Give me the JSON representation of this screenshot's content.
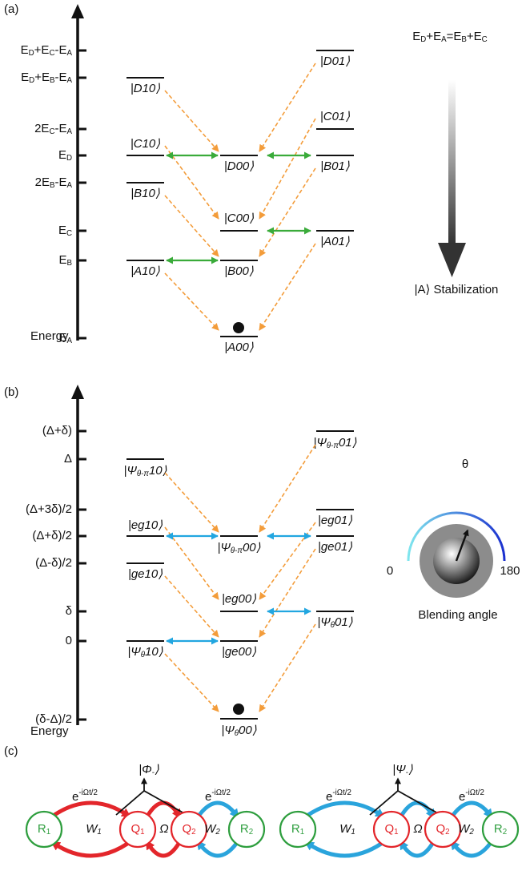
{
  "panel_a": {
    "label": "(a)",
    "axis_title": "Energy",
    "ticks": [
      [
        "E",
        {
          "sub": "D"
        },
        "+E",
        {
          "sub": "C"
        },
        "-E",
        {
          "sub": "A"
        }
      ],
      [
        "E",
        {
          "sub": "D"
        },
        "+E",
        {
          "sub": "B"
        },
        "-E",
        {
          "sub": "A"
        }
      ],
      [
        "2E",
        {
          "sub": "C"
        },
        "-E",
        {
          "sub": "A"
        }
      ],
      [
        "E",
        {
          "sub": "D"
        }
      ],
      [
        "2E",
        {
          "sub": "B"
        },
        "-E",
        {
          "sub": "A"
        }
      ],
      [
        "E",
        {
          "sub": "C"
        }
      ],
      [
        "E",
        {
          "sub": "B"
        }
      ],
      [
        "E",
        {
          "sub": "A"
        }
      ]
    ],
    "states": [
      "|D10⟩",
      "|C10⟩",
      "|B10⟩",
      "|A10⟩",
      "|D00⟩",
      "|C00⟩",
      "|B00⟩",
      "|A00⟩",
      "|D01⟩",
      "|C01⟩",
      "|B01⟩",
      "|A01⟩"
    ],
    "relation": [
      "E",
      {
        "sub": "D"
      },
      "+E",
      {
        "sub": "A"
      },
      "=E",
      {
        "sub": "B"
      },
      "+E",
      {
        "sub": "C"
      }
    ],
    "caption": "|A⟩ Stabilization"
  },
  "panel_b": {
    "label": "(b)",
    "axis_title": "Energy",
    "ticks": [
      "(Δ+δ)",
      "Δ",
      "(Δ+3δ)/2",
      "(Δ+δ)/2",
      "(Δ-δ)/2",
      "δ",
      "0",
      "(δ-Δ)/2"
    ],
    "states": [
      [
        "|Ψ",
        {
          "sub": "θ-π"
        },
        "10⟩"
      ],
      "|eg10⟩",
      "|ge10⟩",
      [
        "|Ψ",
        {
          "sub": "θ"
        },
        "10⟩"
      ],
      [
        "|Ψ",
        {
          "sub": "θ-π"
        },
        "00⟩"
      ],
      "|eg00⟩",
      "|ge00⟩",
      [
        "|Ψ",
        {
          "sub": "θ"
        },
        "00⟩"
      ],
      [
        "|Ψ",
        {
          "sub": "θ-π"
        },
        "01⟩"
      ],
      "|eg01⟩",
      "|ge01⟩",
      [
        "|Ψ",
        {
          "sub": "θ"
        },
        "01⟩"
      ]
    ],
    "dial": {
      "angle_symbol": "θ",
      "min": "0",
      "max": "180",
      "caption": "Blending angle"
    }
  },
  "panel_c": {
    "label": "(c)",
    "circuits": [
      {
        "state": [
          "|Φ",
          {
            "sub": "-"
          },
          "⟩"
        ],
        "nodes": [
          [
            "R",
            {
              "sub": "1"
            }
          ],
          [
            "Q",
            {
              "sub": "1"
            }
          ],
          [
            "Q",
            {
              "sub": "2"
            }
          ],
          [
            "R",
            {
              "sub": "2"
            }
          ]
        ],
        "couplings": [
          [
            "W",
            {
              "sub": "1"
            }
          ],
          "Ω",
          [
            "W",
            {
              "sub": "2"
            }
          ]
        ],
        "drives": [
          [
            "e",
            {
              "sup": "-iΩt/2"
            }
          ],
          [
            "e",
            {
              "sup": "-iΩt/2"
            }
          ]
        ]
      },
      {
        "state": [
          "|Ψ",
          {
            "sub": "-"
          },
          "⟩"
        ],
        "nodes": [
          [
            "R",
            {
              "sub": "1"
            }
          ],
          [
            "Q",
            {
              "sub": "1"
            }
          ],
          [
            "Q",
            {
              "sub": "2"
            }
          ],
          [
            "R",
            {
              "sub": "2"
            }
          ]
        ],
        "couplings": [
          [
            "W",
            {
              "sub": "1"
            }
          ],
          "Ω",
          [
            "W",
            {
              "sub": "2"
            }
          ]
        ],
        "drives": [
          [
            "e",
            {
              "sup": "-iΩt/2"
            }
          ],
          [
            "e",
            {
              "sup": "-iΩt/2"
            }
          ]
        ]
      }
    ]
  }
}
